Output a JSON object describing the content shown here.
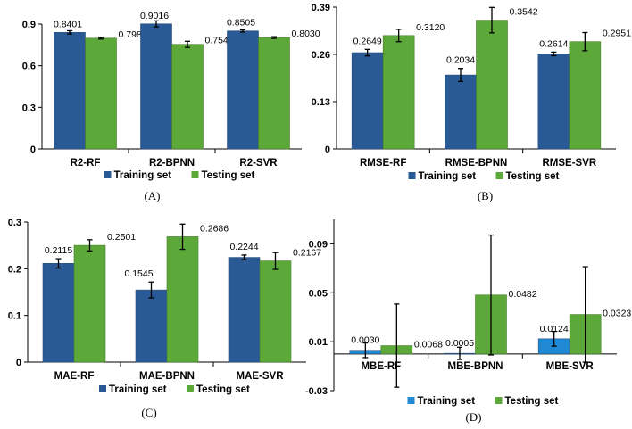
{
  "colors": {
    "training": "#2a5a96",
    "training_d": "#1f89d3",
    "testing": "#5ca93a"
  },
  "chart_data": [
    {
      "id": "A",
      "type": "bar",
      "caption": "(A)",
      "categories": [
        "R2-RF",
        "R2-BPNN",
        "R2-SVR"
      ],
      "series": [
        {
          "name": "Training set",
          "values": [
            0.8401,
            0.9016,
            0.8505
          ],
          "errors": [
            0.012,
            0.022,
            0.008
          ],
          "labels": [
            "0.8401",
            "0.9016",
            "0.8505"
          ]
        },
        {
          "name": "Testing set",
          "values": [
            0.7983,
            0.754,
            0.803
          ],
          "errors": [
            0.006,
            0.022,
            0.006
          ],
          "labels": [
            "0.7983",
            "0.7540",
            "0.8030"
          ]
        }
      ],
      "ylim": [
        0,
        0.9
      ],
      "yticks": [
        0,
        0.3,
        0.6,
        0.9
      ],
      "ytick_labels": [
        "0",
        "0.3",
        "0.6",
        "0.9"
      ],
      "legend": "bottom"
    },
    {
      "id": "B",
      "type": "bar",
      "caption": "(B)",
      "categories": [
        "RMSE-RF",
        "RMSE-BPNN",
        "RMSE-SVR"
      ],
      "series": [
        {
          "name": "Training set",
          "values": [
            0.2649,
            0.2034,
            0.2614
          ],
          "errors": [
            0.009,
            0.018,
            0.005
          ],
          "labels": [
            "0.2649",
            "0.2034",
            "0.2614"
          ]
        },
        {
          "name": "Testing set",
          "values": [
            0.312,
            0.3542,
            0.2951
          ],
          "errors": [
            0.017,
            0.035,
            0.025
          ],
          "labels": [
            "0.3120",
            "0.3542",
            "0.2951"
          ]
        }
      ],
      "ylim": [
        0,
        0.39
      ],
      "yticks": [
        0,
        0.13,
        0.26,
        0.39
      ],
      "ytick_labels": [
        "0",
        "0.13",
        "0.26",
        "0.39"
      ],
      "legend": "bottom"
    },
    {
      "id": "C",
      "type": "bar",
      "caption": "(C)",
      "categories": [
        "MAE-RF",
        "MAE-BPNN",
        "MAE-SVR"
      ],
      "series": [
        {
          "name": "Training set",
          "values": [
            0.2115,
            0.1545,
            0.2244
          ],
          "errors": [
            0.01,
            0.017,
            0.005
          ],
          "labels": [
            "0.2115",
            "0.1545",
            "0.2244"
          ]
        },
        {
          "name": "Testing set",
          "values": [
            0.2501,
            0.2686,
            0.2167
          ],
          "errors": [
            0.012,
            0.027,
            0.018
          ],
          "labels": [
            "0.2501",
            "0.2686",
            "0.2167"
          ]
        }
      ],
      "ylim": [
        0,
        0.3
      ],
      "yticks": [
        0,
        0.1,
        0.2,
        0.3
      ],
      "ytick_labels": [
        "0",
        "0.1",
        "0.2",
        "0.3"
      ],
      "legend": "bottom"
    },
    {
      "id": "D",
      "type": "bar",
      "caption": "(D)",
      "categories": [
        "MBE-RF",
        "MBE-BPNN",
        "MBE-SVR"
      ],
      "series": [
        {
          "name": "Training set",
          "values": [
            0.003,
            0.0005,
            0.0124
          ],
          "errors": [
            0.006,
            0.005,
            0.006
          ],
          "labels": [
            "0.0030",
            "0.0005",
            "0.0124"
          ]
        },
        {
          "name": "Testing set",
          "values": [
            0.0068,
            0.0482,
            0.0323
          ],
          "errors": [
            0.034,
            0.049,
            0.039
          ],
          "labels": [
            "0.0068",
            "0.0482",
            "0.0323"
          ]
        }
      ],
      "ylim": [
        -0.03,
        0.11
      ],
      "yticks": [
        -0.03,
        0.01,
        0.05,
        0.09
      ],
      "ytick_labels": [
        "-0.03",
        "0.01",
        "0.05",
        "0.09"
      ],
      "legend": "bottom"
    }
  ]
}
